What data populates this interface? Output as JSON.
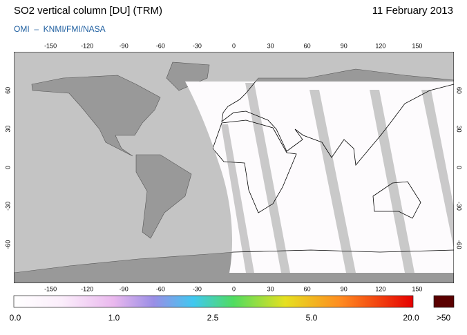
{
  "header": {
    "title": "SO2 vertical column [DU] (TRM)",
    "date": "11 February 2013",
    "source": "OMI  –  KNMI/FMI/NASA"
  },
  "map": {
    "lon_ticks": [
      -150,
      -120,
      -90,
      -60,
      -30,
      0,
      30,
      60,
      90,
      120,
      150
    ],
    "lat_ticks": [
      60,
      30,
      0,
      -30,
      -60
    ]
  },
  "colorbar": {
    "labels": [
      "0.0",
      "1.0",
      "2.5",
      "5.0",
      "20.0"
    ],
    "overflow_label": ">50"
  }
}
